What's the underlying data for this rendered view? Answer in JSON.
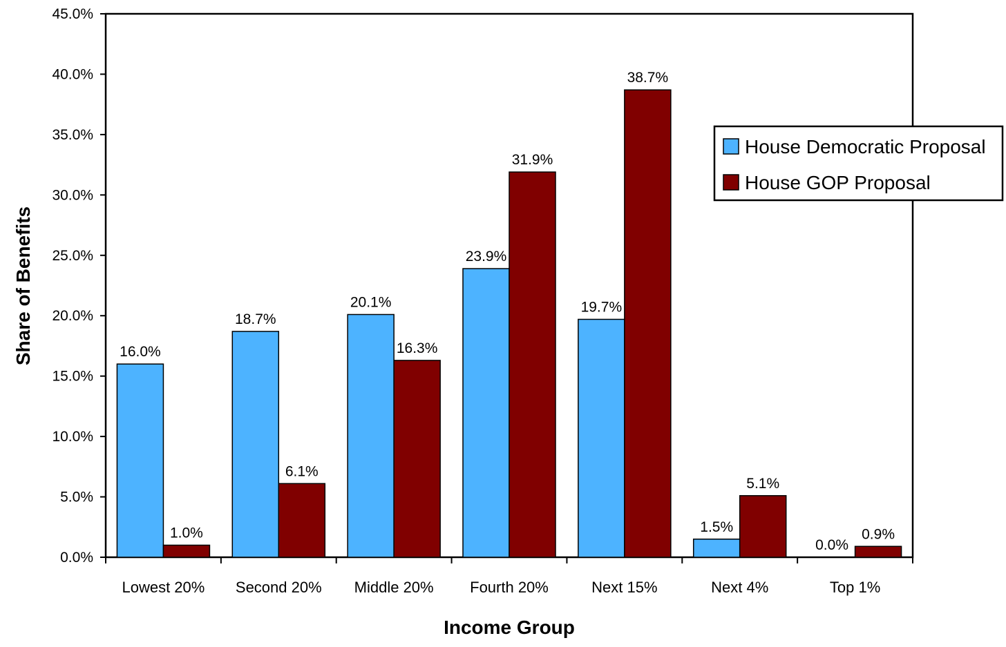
{
  "chart_data": {
    "type": "bar",
    "title": "",
    "xlabel": "Income Group",
    "ylabel": "Share of Benefits",
    "categories": [
      "Lowest 20%",
      "Second 20%",
      "Middle 20%",
      "Fourth 20%",
      "Next 15%",
      "Next 4%",
      "Top 1%"
    ],
    "series": [
      {
        "name": "House Democratic Proposal",
        "color": "#4db3ff",
        "values": [
          16.0,
          18.7,
          20.1,
          23.9,
          19.7,
          1.5,
          0.0
        ],
        "labels": [
          "16.0%",
          "18.7%",
          "20.1%",
          "23.9%",
          "19.7%",
          "1.5%",
          "0.0%"
        ]
      },
      {
        "name": "House GOP Proposal",
        "color": "#800000",
        "values": [
          1.0,
          6.1,
          16.3,
          31.9,
          38.7,
          5.1,
          0.9
        ],
        "labels": [
          "1.0%",
          "6.1%",
          "16.3%",
          "31.9%",
          "38.7%",
          "5.1%",
          "0.9%"
        ]
      }
    ],
    "ylim": [
      0,
      45
    ],
    "yticks": [
      0,
      5,
      10,
      15,
      20,
      25,
      30,
      35,
      40,
      45
    ],
    "ytick_labels": [
      "0.0%",
      "5.0%",
      "10.0%",
      "15.0%",
      "20.0%",
      "25.0%",
      "30.0%",
      "35.0%",
      "40.0%",
      "45.0%"
    ],
    "grid": false,
    "legend_position": "top-right"
  }
}
